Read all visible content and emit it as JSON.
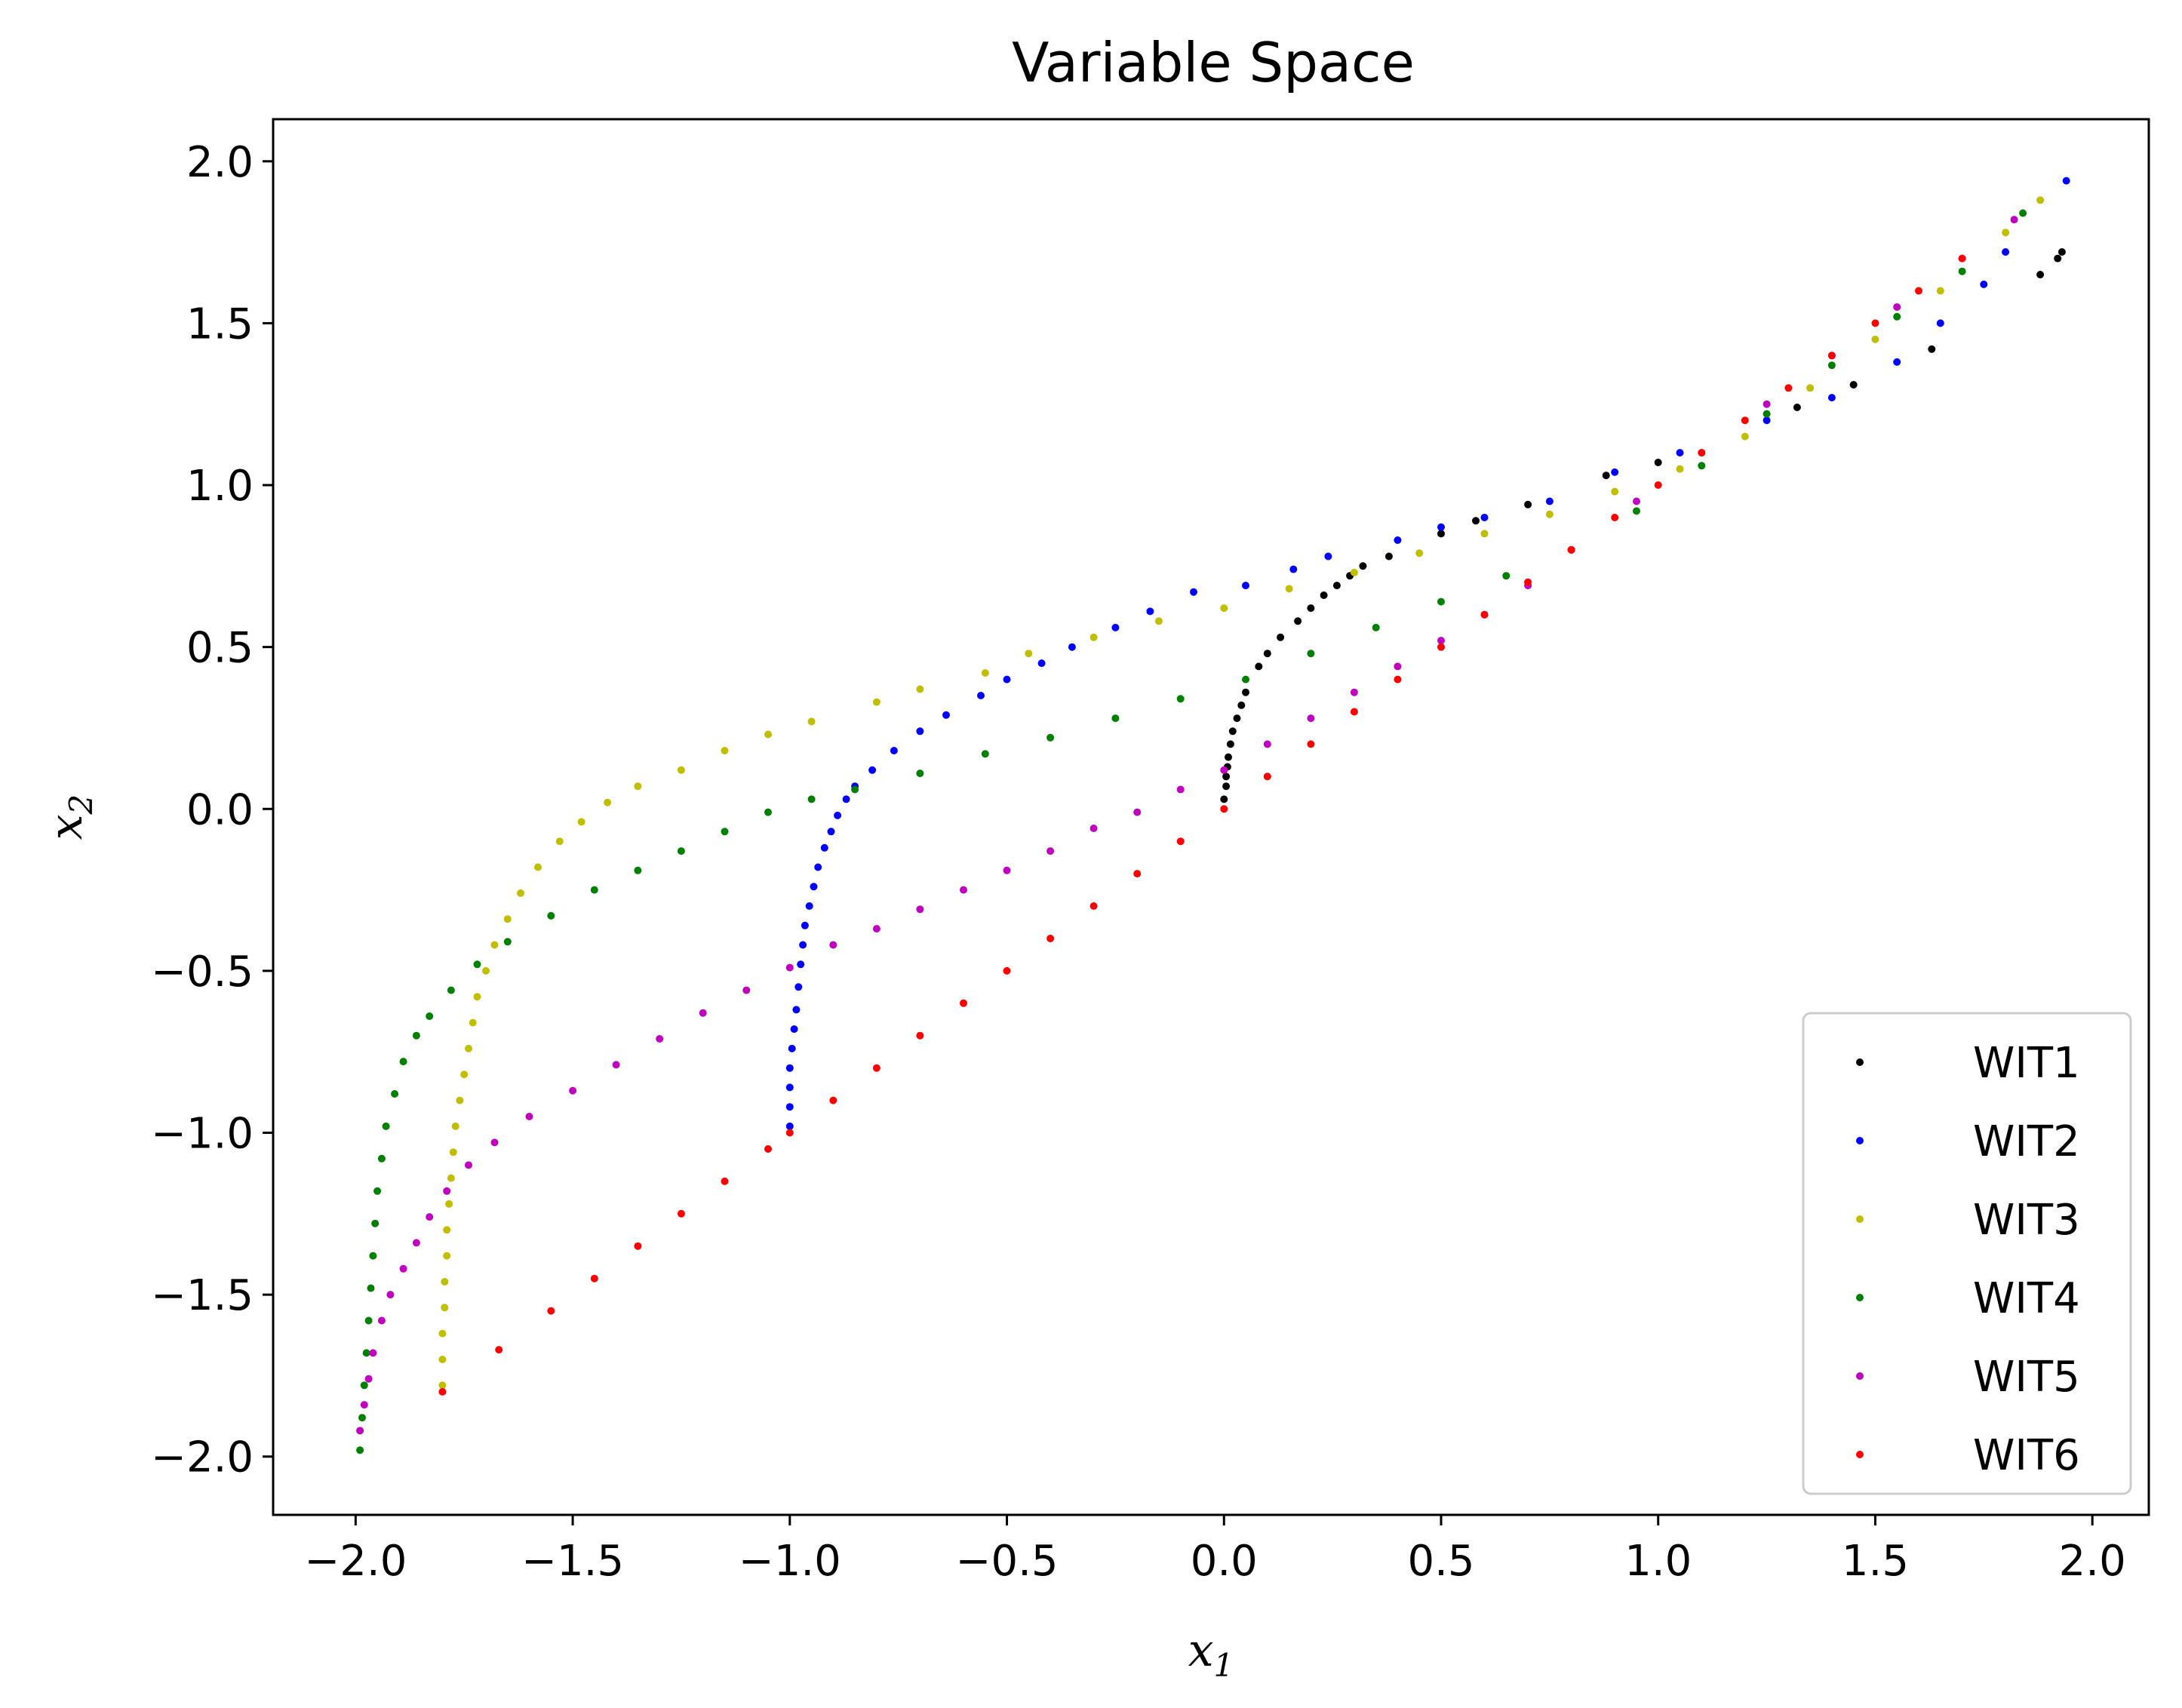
{
  "chart_data": {
    "type": "scatter",
    "title": "Variable Space",
    "xlabel": {
      "base": "x",
      "sub": "1"
    },
    "ylabel": {
      "base": "x",
      "sub": "2"
    },
    "xlim": [
      -2.19,
      2.13
    ],
    "ylim": [
      -2.18,
      2.13
    ],
    "xticks": [
      -2.0,
      -1.5,
      -1.0,
      -0.5,
      0.0,
      0.5,
      1.0,
      1.5,
      2.0
    ],
    "yticks": [
      -2.0,
      -1.5,
      -1.0,
      -0.5,
      0.0,
      0.5,
      1.0,
      1.5,
      2.0
    ],
    "xtick_labels": [
      "−2.0",
      "−1.5",
      "−1.0",
      "−0.5",
      "0.0",
      "0.5",
      "1.0",
      "1.5",
      "2.0"
    ],
    "ytick_labels": [
      "−2.0",
      "−1.5",
      "−1.0",
      "−0.5",
      "0.0",
      "0.5",
      "1.0",
      "1.5",
      "2.0"
    ],
    "grid": false,
    "legend_position": "lower-right",
    "series": [
      {
        "name": "WIT1",
        "color": "#000000",
        "points": [
          [
            0.0,
            0.03
          ],
          [
            0.005,
            0.07
          ],
          [
            0.005,
            0.1
          ],
          [
            0.008,
            0.13
          ],
          [
            0.01,
            0.16
          ],
          [
            0.015,
            0.2
          ],
          [
            0.02,
            0.24
          ],
          [
            0.03,
            0.28
          ],
          [
            0.04,
            0.32
          ],
          [
            0.05,
            0.36
          ],
          [
            0.08,
            0.44
          ],
          [
            0.1,
            0.48
          ],
          [
            0.13,
            0.53
          ],
          [
            0.17,
            0.58
          ],
          [
            0.2,
            0.62
          ],
          [
            0.23,
            0.66
          ],
          [
            0.26,
            0.69
          ],
          [
            0.29,
            0.72
          ],
          [
            0.32,
            0.75
          ],
          [
            0.38,
            0.78
          ],
          [
            0.5,
            0.85
          ],
          [
            0.58,
            0.89
          ],
          [
            0.7,
            0.94
          ],
          [
            0.88,
            1.03
          ],
          [
            1.0,
            1.07
          ],
          [
            1.32,
            1.24
          ],
          [
            1.45,
            1.31
          ],
          [
            1.63,
            1.42
          ],
          [
            1.88,
            1.65
          ],
          [
            1.92,
            1.7
          ],
          [
            1.93,
            1.72
          ]
        ]
      },
      {
        "name": "WIT2",
        "color": "#0000ff",
        "points": [
          [
            -1.0,
            -0.98
          ],
          [
            -1.0,
            -0.92
          ],
          [
            -1.0,
            -0.86
          ],
          [
            -1.0,
            -0.8
          ],
          [
            -0.995,
            -0.74
          ],
          [
            -0.99,
            -0.68
          ],
          [
            -0.985,
            -0.62
          ],
          [
            -0.98,
            -0.55
          ],
          [
            -0.975,
            -0.48
          ],
          [
            -0.97,
            -0.42
          ],
          [
            -0.965,
            -0.36
          ],
          [
            -0.955,
            -0.3
          ],
          [
            -0.945,
            -0.24
          ],
          [
            -0.935,
            -0.18
          ],
          [
            -0.92,
            -0.12
          ],
          [
            -0.905,
            -0.07
          ],
          [
            -0.89,
            -0.02
          ],
          [
            -0.87,
            0.03
          ],
          [
            -0.85,
            0.07
          ],
          [
            -0.81,
            0.12
          ],
          [
            -0.76,
            0.18
          ],
          [
            -0.7,
            0.24
          ],
          [
            -0.64,
            0.29
          ],
          [
            -0.56,
            0.35
          ],
          [
            -0.5,
            0.4
          ],
          [
            -0.42,
            0.45
          ],
          [
            -0.35,
            0.5
          ],
          [
            -0.25,
            0.56
          ],
          [
            -0.17,
            0.61
          ],
          [
            -0.07,
            0.67
          ],
          [
            0.05,
            0.69
          ],
          [
            0.16,
            0.74
          ],
          [
            0.24,
            0.78
          ],
          [
            0.4,
            0.83
          ],
          [
            0.5,
            0.87
          ],
          [
            0.6,
            0.9
          ],
          [
            0.75,
            0.95
          ],
          [
            0.9,
            1.04
          ],
          [
            1.05,
            1.1
          ],
          [
            1.25,
            1.2
          ],
          [
            1.4,
            1.27
          ],
          [
            1.55,
            1.38
          ],
          [
            1.65,
            1.5
          ],
          [
            1.75,
            1.62
          ],
          [
            1.8,
            1.72
          ],
          [
            1.94,
            1.94
          ]
        ]
      },
      {
        "name": "WIT3",
        "color": "#bfbf00",
        "points": [
          [
            -1.8,
            -1.78
          ],
          [
            -1.8,
            -1.7
          ],
          [
            -1.8,
            -1.62
          ],
          [
            -1.795,
            -1.54
          ],
          [
            -1.795,
            -1.46
          ],
          [
            -1.79,
            -1.38
          ],
          [
            -1.79,
            -1.3
          ],
          [
            -1.785,
            -1.22
          ],
          [
            -1.78,
            -1.14
          ],
          [
            -1.775,
            -1.06
          ],
          [
            -1.77,
            -0.98
          ],
          [
            -1.76,
            -0.9
          ],
          [
            -1.75,
            -0.82
          ],
          [
            -1.74,
            -0.74
          ],
          [
            -1.73,
            -0.66
          ],
          [
            -1.72,
            -0.58
          ],
          [
            -1.7,
            -0.5
          ],
          [
            -1.68,
            -0.42
          ],
          [
            -1.65,
            -0.34
          ],
          [
            -1.62,
            -0.26
          ],
          [
            -1.58,
            -0.18
          ],
          [
            -1.53,
            -0.1
          ],
          [
            -1.48,
            -0.04
          ],
          [
            -1.42,
            0.02
          ],
          [
            -1.35,
            0.07
          ],
          [
            -1.25,
            0.12
          ],
          [
            -1.15,
            0.18
          ],
          [
            -1.05,
            0.23
          ],
          [
            -0.95,
            0.27
          ],
          [
            -0.8,
            0.33
          ],
          [
            -0.7,
            0.37
          ],
          [
            -0.55,
            0.42
          ],
          [
            -0.45,
            0.48
          ],
          [
            -0.3,
            0.53
          ],
          [
            -0.15,
            0.58
          ],
          [
            0.0,
            0.62
          ],
          [
            0.15,
            0.68
          ],
          [
            0.3,
            0.73
          ],
          [
            0.45,
            0.79
          ],
          [
            0.6,
            0.85
          ],
          [
            0.75,
            0.91
          ],
          [
            0.9,
            0.98
          ],
          [
            1.05,
            1.05
          ],
          [
            1.2,
            1.15
          ],
          [
            1.35,
            1.3
          ],
          [
            1.5,
            1.45
          ],
          [
            1.65,
            1.6
          ],
          [
            1.8,
            1.78
          ],
          [
            1.88,
            1.88
          ]
        ]
      },
      {
        "name": "WIT4",
        "color": "#008000",
        "points": [
          [
            -1.99,
            -1.98
          ],
          [
            -1.985,
            -1.88
          ],
          [
            -1.98,
            -1.78
          ],
          [
            -1.975,
            -1.68
          ],
          [
            -1.97,
            -1.58
          ],
          [
            -1.965,
            -1.48
          ],
          [
            -1.96,
            -1.38
          ],
          [
            -1.955,
            -1.28
          ],
          [
            -1.95,
            -1.18
          ],
          [
            -1.94,
            -1.08
          ],
          [
            -1.93,
            -0.98
          ],
          [
            -1.91,
            -0.88
          ],
          [
            -1.89,
            -0.78
          ],
          [
            -1.86,
            -0.7
          ],
          [
            -1.83,
            -0.64
          ],
          [
            -1.78,
            -0.56
          ],
          [
            -1.72,
            -0.48
          ],
          [
            -1.65,
            -0.41
          ],
          [
            -1.55,
            -0.33
          ],
          [
            -1.45,
            -0.25
          ],
          [
            -1.35,
            -0.19
          ],
          [
            -1.25,
            -0.13
          ],
          [
            -1.15,
            -0.07
          ],
          [
            -1.05,
            -0.01
          ],
          [
            -0.95,
            0.03
          ],
          [
            -0.85,
            0.06
          ],
          [
            -0.7,
            0.11
          ],
          [
            -0.55,
            0.17
          ],
          [
            -0.4,
            0.22
          ],
          [
            -0.25,
            0.28
          ],
          [
            -0.1,
            0.34
          ],
          [
            0.05,
            0.4
          ],
          [
            0.2,
            0.48
          ],
          [
            0.35,
            0.56
          ],
          [
            0.5,
            0.64
          ],
          [
            0.65,
            0.72
          ],
          [
            0.8,
            0.8
          ],
          [
            0.95,
            0.92
          ],
          [
            1.1,
            1.06
          ],
          [
            1.25,
            1.22
          ],
          [
            1.4,
            1.37
          ],
          [
            1.55,
            1.52
          ],
          [
            1.7,
            1.66
          ],
          [
            1.84,
            1.84
          ]
        ]
      },
      {
        "name": "WIT5",
        "color": "#bf00bf",
        "points": [
          [
            -1.99,
            -1.92
          ],
          [
            -1.98,
            -1.84
          ],
          [
            -1.97,
            -1.76
          ],
          [
            -1.96,
            -1.68
          ],
          [
            -1.94,
            -1.58
          ],
          [
            -1.92,
            -1.5
          ],
          [
            -1.89,
            -1.42
          ],
          [
            -1.86,
            -1.34
          ],
          [
            -1.83,
            -1.26
          ],
          [
            -1.79,
            -1.18
          ],
          [
            -1.74,
            -1.1
          ],
          [
            -1.68,
            -1.03
          ],
          [
            -1.6,
            -0.95
          ],
          [
            -1.5,
            -0.87
          ],
          [
            -1.4,
            -0.79
          ],
          [
            -1.3,
            -0.71
          ],
          [
            -1.2,
            -0.63
          ],
          [
            -1.1,
            -0.56
          ],
          [
            -1.0,
            -0.49
          ],
          [
            -0.9,
            -0.42
          ],
          [
            -0.8,
            -0.37
          ],
          [
            -0.7,
            -0.31
          ],
          [
            -0.6,
            -0.25
          ],
          [
            -0.5,
            -0.19
          ],
          [
            -0.4,
            -0.13
          ],
          [
            -0.3,
            -0.06
          ],
          [
            -0.2,
            -0.01
          ],
          [
            -0.1,
            0.06
          ],
          [
            0.0,
            0.12
          ],
          [
            0.1,
            0.2
          ],
          [
            0.2,
            0.28
          ],
          [
            0.3,
            0.36
          ],
          [
            0.4,
            0.44
          ],
          [
            0.5,
            0.52
          ],
          [
            0.6,
            0.6
          ],
          [
            0.7,
            0.69
          ],
          [
            0.8,
            0.8
          ],
          [
            0.95,
            0.95
          ],
          [
            1.1,
            1.1
          ],
          [
            1.25,
            1.25
          ],
          [
            1.4,
            1.4
          ],
          [
            1.55,
            1.55
          ],
          [
            1.7,
            1.7
          ],
          [
            1.82,
            1.82
          ]
        ]
      },
      {
        "name": "WIT6",
        "color": "#ff0000",
        "points": [
          [
            -1.8,
            -1.8
          ],
          [
            -1.67,
            -1.67
          ],
          [
            -1.55,
            -1.55
          ],
          [
            -1.45,
            -1.45
          ],
          [
            -1.35,
            -1.35
          ],
          [
            -1.25,
            -1.25
          ],
          [
            -1.15,
            -1.15
          ],
          [
            -1.05,
            -1.05
          ],
          [
            -1.0,
            -1.0
          ],
          [
            -0.9,
            -0.9
          ],
          [
            -0.8,
            -0.8
          ],
          [
            -0.7,
            -0.7
          ],
          [
            -0.6,
            -0.6
          ],
          [
            -0.5,
            -0.5
          ],
          [
            -0.4,
            -0.4
          ],
          [
            -0.3,
            -0.3
          ],
          [
            -0.2,
            -0.2
          ],
          [
            -0.1,
            -0.1
          ],
          [
            0.0,
            0.0
          ],
          [
            0.1,
            0.1
          ],
          [
            0.2,
            0.2
          ],
          [
            0.3,
            0.3
          ],
          [
            0.4,
            0.4
          ],
          [
            0.5,
            0.5
          ],
          [
            0.6,
            0.6
          ],
          [
            0.7,
            0.7
          ],
          [
            0.8,
            0.8
          ],
          [
            0.9,
            0.9
          ],
          [
            1.0,
            1.0
          ],
          [
            1.1,
            1.1
          ],
          [
            1.2,
            1.2
          ],
          [
            1.3,
            1.3
          ],
          [
            1.4,
            1.4
          ],
          [
            1.5,
            1.5
          ],
          [
            1.6,
            1.6
          ],
          [
            1.7,
            1.7
          ]
        ]
      }
    ]
  }
}
